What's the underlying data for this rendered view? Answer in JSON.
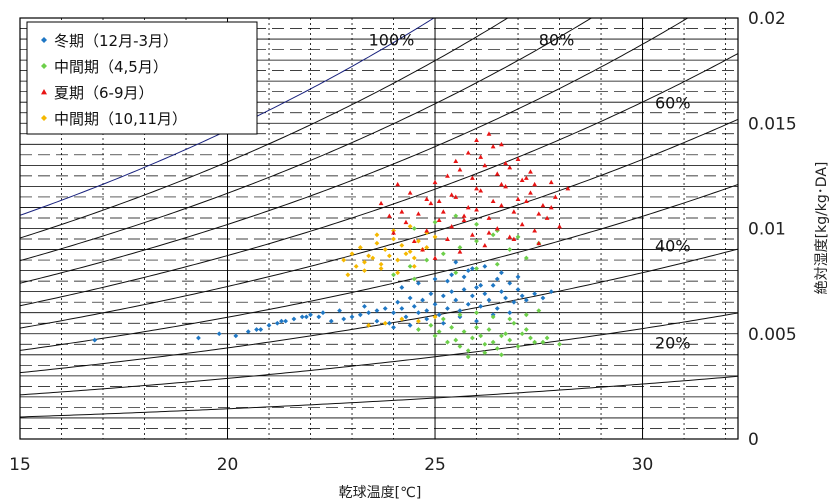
{
  "chart_data": {
    "type": "scatter",
    "xlabel": "乾球温度[℃]",
    "ylabel": "絶対湿度[kg/kg･DA]",
    "xlim": [
      15,
      32.3
    ],
    "ylim": [
      0,
      0.02
    ],
    "x_ticks": [
      15,
      20,
      25,
      30
    ],
    "y_ticks": [
      {
        "value": 0,
        "label": "0"
      },
      {
        "value": 0.005,
        "label": "0.005"
      },
      {
        "value": 0.01,
        "label": "0.01"
      },
      {
        "value": 0.015,
        "label": "0.015"
      },
      {
        "value": 0.02,
        "label": "0.02"
      }
    ],
    "grid": true,
    "legend_position": "top-left",
    "rh_curves": [
      {
        "rh": 10
      },
      {
        "rh": 20,
        "label": "20%"
      },
      {
        "rh": 30
      },
      {
        "rh": 40,
        "label": "40%"
      },
      {
        "rh": 50
      },
      {
        "rh": 60,
        "label": "60%"
      },
      {
        "rh": 70
      },
      {
        "rh": 80,
        "label": "80%"
      },
      {
        "rh": 90
      },
      {
        "rh": 100,
        "label": "100%",
        "color": "#1a237e"
      }
    ],
    "series": [
      {
        "name": "冬期（12月-3月）",
        "color": "#1f77c4",
        "marker": "diamond",
        "x": [
          16.8,
          19.3,
          19.8,
          20.2,
          20.5,
          20.8,
          21.0,
          21.2,
          21.4,
          21.6,
          21.8,
          22.0,
          22.2,
          22.5,
          22.8,
          23.0,
          23.2,
          23.4,
          23.6,
          23.8,
          23.9,
          24.0,
          24.1,
          24.2,
          24.3,
          24.4,
          24.5,
          24.6,
          24.7,
          24.8,
          24.9,
          25.0,
          25.1,
          25.2,
          25.3,
          25.4,
          25.5,
          25.6,
          25.7,
          25.8,
          25.9,
          26.0,
          26.1,
          26.2,
          26.3,
          26.4,
          26.5,
          26.6,
          26.7,
          26.8,
          26.9,
          27.0,
          27.1,
          27.2,
          27.4,
          27.6,
          27.8,
          24.2,
          24.6,
          25.0,
          25.4,
          25.8,
          26.2,
          26.6,
          27.0,
          23.6,
          24.0,
          24.4,
          24.8,
          25.2,
          25.6,
          26.0,
          26.4,
          26.8,
          25.3,
          25.7,
          26.1,
          26.5,
          23.3,
          22.7,
          22.3,
          21.9,
          21.3,
          20.7,
          25.5,
          25.9
        ],
        "y": [
          0.0047,
          0.0048,
          0.005,
          0.0049,
          0.0051,
          0.0052,
          0.0054,
          0.0055,
          0.0056,
          0.0057,
          0.0058,
          0.0059,
          0.0058,
          0.0056,
          0.0057,
          0.0058,
          0.0059,
          0.006,
          0.0061,
          0.0062,
          0.0055,
          0.006,
          0.0065,
          0.0062,
          0.0058,
          0.0067,
          0.0063,
          0.006,
          0.0066,
          0.0061,
          0.0069,
          0.0064,
          0.0059,
          0.0068,
          0.0062,
          0.007,
          0.0066,
          0.0061,
          0.0071,
          0.0064,
          0.0068,
          0.0072,
          0.0063,
          0.0069,
          0.0066,
          0.0073,
          0.0062,
          0.007,
          0.0067,
          0.0074,
          0.0065,
          0.0071,
          0.0068,
          0.0066,
          0.0069,
          0.0067,
          0.007,
          0.0072,
          0.0074,
          0.0076,
          0.0078,
          0.008,
          0.0082,
          0.0079,
          0.0077,
          0.0056,
          0.0053,
          0.0054,
          0.0057,
          0.0055,
          0.0058,
          0.0056,
          0.0059,
          0.006,
          0.0075,
          0.0077,
          0.0073,
          0.0076,
          0.0063,
          0.0061,
          0.006,
          0.0058,
          0.0056,
          0.0052,
          0.0084,
          0.0081
        ]
      },
      {
        "name": "中間期（4,5月）",
        "color": "#6dcf4a",
        "marker": "diamond",
        "x": [
          24.6,
          25.0,
          25.3,
          25.6,
          25.9,
          26.2,
          26.5,
          26.8,
          27.1,
          27.4,
          27.7,
          28.0,
          25.1,
          25.5,
          25.8,
          26.1,
          26.4,
          26.7,
          27.0,
          27.3,
          27.6,
          24.9,
          25.4,
          25.7,
          26.0,
          26.3,
          26.6,
          26.9,
          27.2,
          25.2,
          25.6,
          26.0,
          26.4,
          26.8,
          27.2,
          27.5,
          25.8,
          26.2,
          26.6,
          24.4,
          24.8,
          25.2,
          25.6,
          26.0,
          26.4,
          26.8,
          27.2,
          24.5,
          25.0,
          25.5,
          26.0,
          26.5,
          27.0,
          27.5,
          25.5,
          26.0,
          26.5,
          24.0,
          24.5
        ],
        "y": [
          0.0052,
          0.0049,
          0.0046,
          0.0044,
          0.0048,
          0.0045,
          0.0043,
          0.0047,
          0.005,
          0.0046,
          0.0048,
          0.0045,
          0.0051,
          0.0047,
          0.0042,
          0.0049,
          0.0046,
          0.005,
          0.0044,
          0.0048,
          0.0046,
          0.0054,
          0.0053,
          0.0051,
          0.0053,
          0.0052,
          0.0049,
          0.0055,
          0.0052,
          0.0057,
          0.0059,
          0.006,
          0.0058,
          0.0057,
          0.0059,
          0.0061,
          0.0039,
          0.0041,
          0.004,
          0.0082,
          0.0085,
          0.0088,
          0.0091,
          0.0094,
          0.0097,
          0.009,
          0.0086,
          0.01,
          0.0103,
          0.0106,
          0.0102,
          0.0099,
          0.0096,
          0.0093,
          0.0079,
          0.0081,
          0.0083,
          0.0078,
          0.0076
        ]
      },
      {
        "name": "夏期（6-9月）",
        "color": "#e81414",
        "marker": "triangle",
        "x": [
          24.0,
          24.3,
          24.6,
          24.9,
          25.2,
          25.5,
          25.8,
          26.1,
          26.4,
          26.7,
          27.0,
          27.3,
          27.6,
          27.9,
          28.2,
          24.5,
          24.8,
          25.1,
          25.4,
          25.7,
          26.0,
          26.3,
          26.6,
          26.9,
          27.2,
          27.5,
          27.8,
          25.0,
          25.3,
          25.6,
          25.9,
          26.2,
          26.5,
          26.8,
          27.1,
          27.4,
          24.7,
          25.3,
          25.9,
          26.5,
          27.1,
          27.7,
          24.2,
          24.8,
          25.4,
          26.0,
          26.6,
          27.2,
          27.8,
          25.5,
          26.1,
          26.7,
          27.3,
          25.8,
          26.4,
          27.0,
          26.0,
          26.6,
          24.4,
          25.1,
          25.7,
          26.3,
          26.9,
          27.5,
          23.9,
          23.7,
          24.1,
          25.0,
          25.6,
          26.2,
          26.8,
          27.4,
          28.0,
          26.3
        ],
        "y": [
          0.0098,
          0.0103,
          0.0107,
          0.0112,
          0.0108,
          0.0115,
          0.011,
          0.0118,
          0.0113,
          0.012,
          0.0114,
          0.0117,
          0.0111,
          0.0115,
          0.0119,
          0.0094,
          0.0099,
          0.0104,
          0.0101,
          0.0106,
          0.0109,
          0.0105,
          0.0111,
          0.0108,
          0.0113,
          0.0107,
          0.011,
          0.0122,
          0.0125,
          0.0128,
          0.0124,
          0.013,
          0.0126,
          0.0129,
          0.0123,
          0.0121,
          0.009,
          0.0095,
          0.0097,
          0.01,
          0.0102,
          0.0105,
          0.0108,
          0.0114,
          0.0116,
          0.0119,
          0.0121,
          0.0124,
          0.0122,
          0.0132,
          0.0134,
          0.0131,
          0.0127,
          0.0136,
          0.0139,
          0.0133,
          0.0142,
          0.014,
          0.0117,
          0.0113,
          0.0104,
          0.0098,
          0.0095,
          0.0093,
          0.0106,
          0.0112,
          0.0121,
          0.0086,
          0.0089,
          0.0092,
          0.0096,
          0.0099,
          0.0101,
          0.0145
        ]
      },
      {
        "name": "中間期（10,11月）",
        "color": "#f5b800",
        "marker": "diamond",
        "x": [
          22.8,
          23.0,
          23.2,
          23.4,
          23.6,
          23.8,
          24.0,
          24.2,
          24.4,
          24.6,
          24.8,
          25.0,
          23.1,
          23.3,
          23.5,
          23.7,
          23.9,
          24.1,
          24.3,
          24.5,
          24.7,
          23.4,
          23.8,
          24.2,
          24.6,
          25.0,
          22.9,
          23.3,
          23.7,
          24.1,
          24.5,
          23.6,
          24.0,
          24.4,
          24.8
        ],
        "y": [
          0.0085,
          0.0088,
          0.0091,
          0.0087,
          0.0093,
          0.009,
          0.0095,
          0.0092,
          0.0089,
          0.0094,
          0.0091,
          0.0096,
          0.0082,
          0.0084,
          0.0086,
          0.0083,
          0.0087,
          0.0085,
          0.0088,
          0.0086,
          0.009,
          0.0054,
          0.0055,
          0.0057,
          0.0056,
          0.0058,
          0.0078,
          0.008,
          0.0081,
          0.0079,
          0.0082,
          0.0097,
          0.0099,
          0.0101,
          0.0098
        ]
      }
    ]
  }
}
